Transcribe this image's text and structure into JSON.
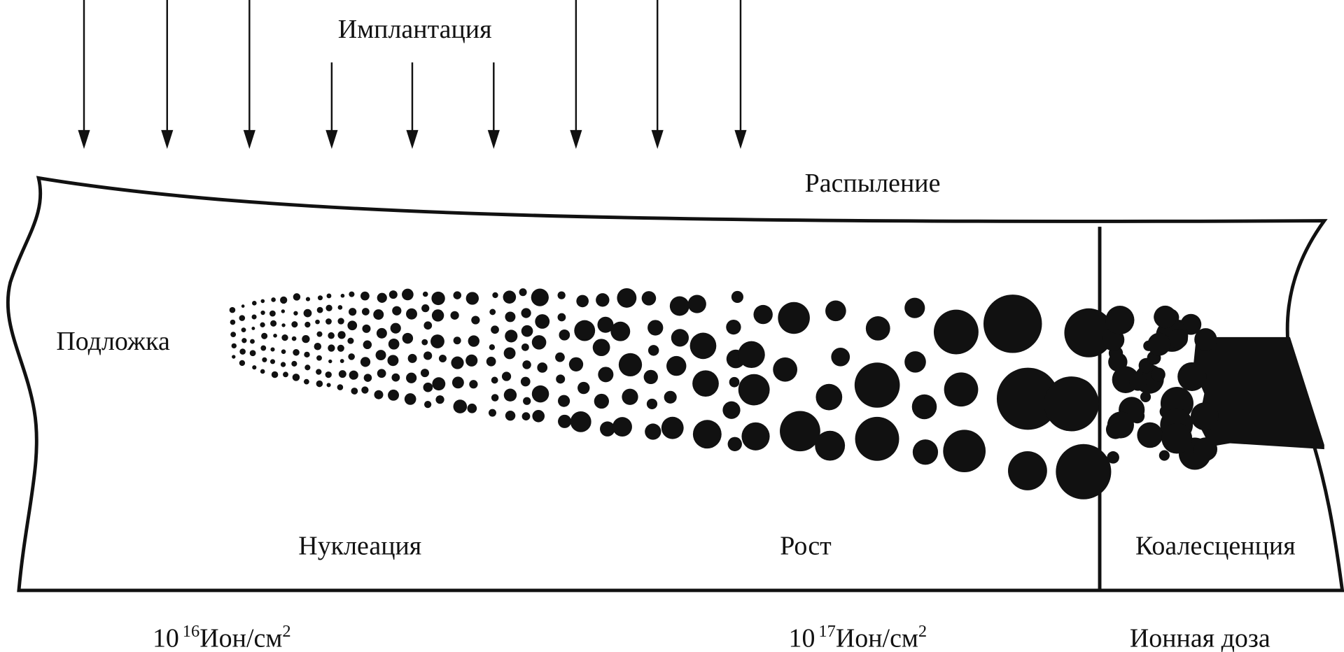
{
  "labels": {
    "implantation": "Имплантация",
    "sputtering": "Распыление",
    "substrate": "Подложка",
    "nucleation": "Нуклеация",
    "growth": "Рост",
    "coalescence": "Коалесценция"
  },
  "dose_axis": {
    "title": "Ионная доза",
    "ticks": [
      {
        "base": "10",
        "exponent": "16",
        "unit": "Ион/см",
        "unit_exponent": "2"
      },
      {
        "base": "10",
        "exponent": "17",
        "unit": "Ион/см",
        "unit_exponent": "2"
      }
    ]
  }
}
